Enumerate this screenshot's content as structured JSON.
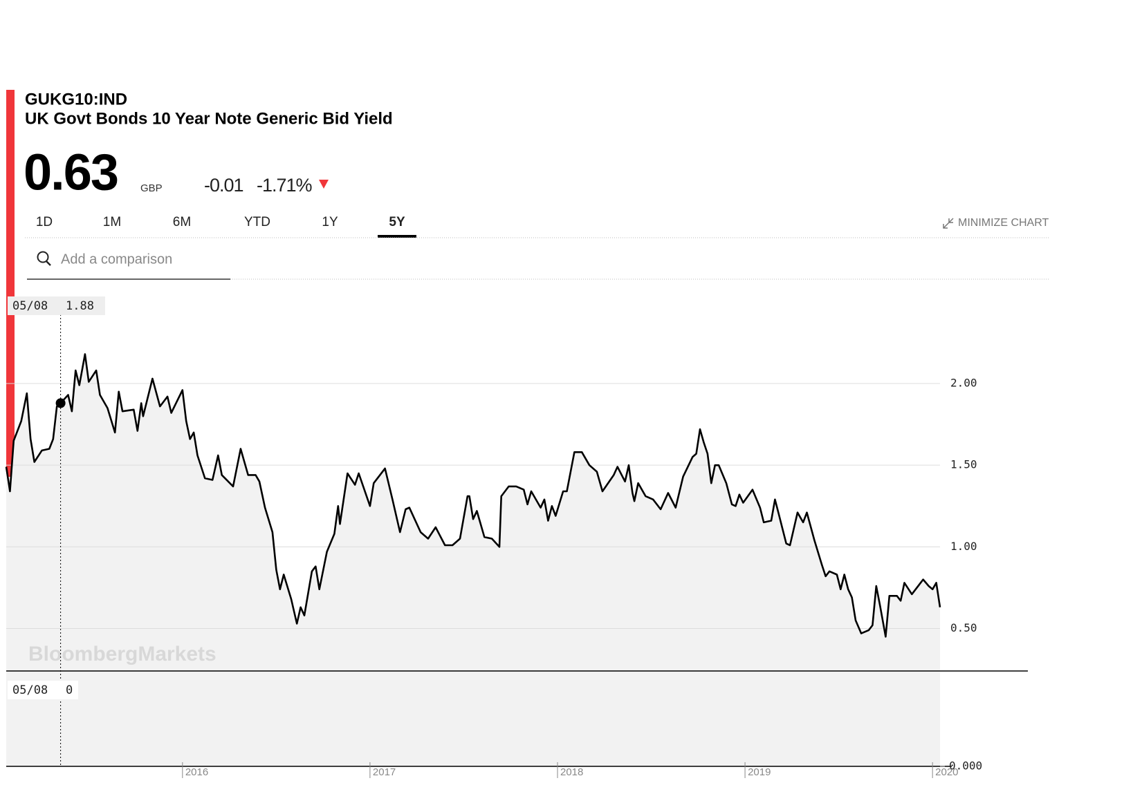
{
  "header": {
    "ticker": "GUKG10:IND",
    "name": "UK Govt Bonds 10 Year Note Generic Bid Yield",
    "price": 0.63,
    "currency": "GBP",
    "change": -0.01,
    "change_pct": "-1.71%"
  },
  "tabs": [
    "1D",
    "1M",
    "6M",
    "YTD",
    "1Y",
    "5Y"
  ],
  "active_tab": 5,
  "minimize": "MINIMIZE CHART",
  "search_placeholder": "Add a comparison",
  "watermark": "BloombergMarkets",
  "chart_data": {
    "type": "line",
    "color": "#000000",
    "fill": "#f2f2f2",
    "x": [
      2015.06,
      2015.08,
      2015.1,
      2015.14,
      2015.17,
      2015.19,
      2015.21,
      2015.25,
      2015.29,
      2015.31,
      2015.33,
      2015.35,
      2015.39,
      2015.41,
      2015.43,
      2015.45,
      2015.48,
      2015.5,
      2015.54,
      2015.56,
      2015.6,
      2015.64,
      2015.66,
      2015.68,
      2015.74,
      2015.76,
      2015.78,
      2015.79,
      2015.84,
      2015.88,
      2015.92,
      2015.94,
      2016.0,
      2016.02,
      2016.04,
      2016.06,
      2016.08,
      2016.12,
      2016.16,
      2016.19,
      2016.21,
      2016.27,
      2016.31,
      2016.35,
      2016.39,
      2016.41,
      2016.44,
      2016.48,
      2016.5,
      2016.52,
      2016.54,
      2016.58,
      2016.61,
      2016.63,
      2016.65,
      2016.69,
      2016.71,
      2016.73,
      2016.77,
      2016.81,
      2016.83,
      2016.84,
      2016.88,
      2016.92,
      2016.94,
      2017.0,
      2017.02,
      2017.08,
      2017.12,
      2017.16,
      2017.19,
      2017.21,
      2017.27,
      2017.31,
      2017.35,
      2017.4,
      2017.44,
      2017.48,
      2017.52,
      2017.53,
      2017.55,
      2017.57,
      2017.61,
      2017.65,
      2017.69,
      2017.7,
      2017.74,
      2017.78,
      2017.82,
      2017.84,
      2017.86,
      2017.91,
      2017.93,
      2017.95,
      2017.97,
      2017.99,
      2018.03,
      2018.05,
      2018.09,
      2018.13,
      2018.17,
      2018.21,
      2018.24,
      2018.3,
      2018.32,
      2018.36,
      2018.38,
      2018.4,
      2018.41,
      2018.43,
      2018.47,
      2018.51,
      2018.55,
      2018.59,
      2018.63,
      2018.67,
      2018.72,
      2018.74,
      2018.76,
      2018.78,
      2018.8,
      2018.82,
      2018.84,
      2018.86,
      2018.9,
      2018.93,
      2018.95,
      2018.97,
      2018.99,
      2019.04,
      2019.08,
      2019.1,
      2019.14,
      2019.16,
      2019.18,
      2019.22,
      2019.24,
      2019.28,
      2019.31,
      2019.33,
      2019.37,
      2019.41,
      2019.43,
      2019.45,
      2019.49,
      2019.51,
      2019.53,
      2019.55,
      2019.57,
      2019.59,
      2019.62,
      2019.66,
      2019.68,
      2019.7,
      2019.72,
      2019.75,
      2019.77,
      2019.81,
      2019.83,
      2019.85,
      2019.89,
      2019.93,
      2019.95,
      2019.98,
      2020.0,
      2020.02,
      2020.04
    ],
    "values": [
      1.49,
      1.34,
      1.65,
      1.77,
      1.94,
      1.66,
      1.52,
      1.59,
      1.6,
      1.66,
      1.86,
      1.88,
      1.93,
      1.83,
      2.08,
      1.99,
      2.18,
      2.01,
      2.08,
      1.93,
      1.85,
      1.7,
      1.95,
      1.83,
      1.84,
      1.71,
      1.88,
      1.8,
      2.03,
      1.86,
      1.92,
      1.82,
      1.96,
      1.77,
      1.66,
      1.7,
      1.56,
      1.42,
      1.41,
      1.56,
      1.44,
      1.37,
      1.6,
      1.44,
      1.44,
      1.4,
      1.24,
      1.09,
      0.86,
      0.74,
      0.83,
      0.68,
      0.53,
      0.63,
      0.58,
      0.85,
      0.88,
      0.74,
      0.97,
      1.08,
      1.25,
      1.14,
      1.45,
      1.38,
      1.45,
      1.25,
      1.39,
      1.48,
      1.29,
      1.09,
      1.23,
      1.24,
      1.09,
      1.05,
      1.12,
      1.01,
      1.01,
      1.05,
      1.31,
      1.31,
      1.17,
      1.22,
      1.06,
      1.05,
      1.0,
      1.31,
      1.37,
      1.37,
      1.35,
      1.26,
      1.34,
      1.24,
      1.29,
      1.16,
      1.25,
      1.19,
      1.34,
      1.34,
      1.58,
      1.58,
      1.5,
      1.46,
      1.34,
      1.44,
      1.49,
      1.4,
      1.5,
      1.33,
      1.28,
      1.39,
      1.31,
      1.29,
      1.23,
      1.33,
      1.24,
      1.43,
      1.55,
      1.57,
      1.72,
      1.64,
      1.57,
      1.39,
      1.5,
      1.5,
      1.39,
      1.26,
      1.25,
      1.32,
      1.27,
      1.35,
      1.24,
      1.15,
      1.16,
      1.29,
      1.2,
      1.02,
      1.01,
      1.21,
      1.15,
      1.21,
      1.04,
      0.89,
      0.82,
      0.85,
      0.83,
      0.74,
      0.83,
      0.74,
      0.69,
      0.55,
      0.47,
      0.49,
      0.52,
      0.76,
      0.64,
      0.45,
      0.7,
      0.7,
      0.67,
      0.78,
      0.71,
      0.77,
      0.8,
      0.76,
      0.74,
      0.78,
      0.63
    ],
    "xlim": [
      2015.06,
      2020.04
    ],
    "ylim": [
      0.24,
      2.55
    ],
    "xticks": [
      2016,
      2017,
      2018,
      2019,
      2020
    ],
    "yticks": [
      {
        "value": 0.5,
        "label": "0.50"
      },
      {
        "value": 1,
        "label": "1.00"
      },
      {
        "value": 1.5,
        "label": "1.50"
      },
      {
        "value": 2,
        "label": "2.00"
      }
    ],
    "grid": true,
    "crosshair": {
      "date": "05/08",
      "value": 1.88
    }
  },
  "volume_panel": {
    "yticks": [
      {
        "value": 0,
        "label": "0.000"
      }
    ],
    "crosshair": {
      "date": "05/08",
      "value": 0
    }
  }
}
